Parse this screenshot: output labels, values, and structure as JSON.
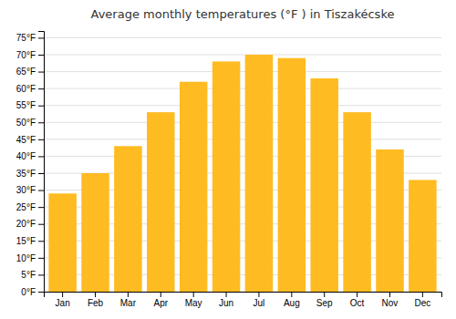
{
  "chart_data": {
    "type": "bar",
    "title": "Average monthly temperatures (°F ) in Tiszakécske",
    "categories": [
      "Jan",
      "Feb",
      "Mar",
      "Apr",
      "May",
      "Jun",
      "Jul",
      "Aug",
      "Sep",
      "Oct",
      "Nov",
      "Dec"
    ],
    "values": [
      29,
      35,
      43,
      53,
      62,
      68,
      70,
      69,
      63,
      53,
      42,
      33
    ],
    "color": "#FFBB22",
    "ylim": [
      0,
      77
    ],
    "yticks": [
      {
        "value": 0,
        "label": "0°F"
      },
      {
        "value": 5,
        "label": "5°F"
      },
      {
        "value": 10,
        "label": "10°F"
      },
      {
        "value": 15,
        "label": "15°F"
      },
      {
        "value": 20,
        "label": "20°F"
      },
      {
        "value": 25,
        "label": "25°F"
      },
      {
        "value": 30,
        "label": "30°F"
      },
      {
        "value": 35,
        "label": "35°F"
      },
      {
        "value": 40,
        "label": "40°F"
      },
      {
        "value": 45,
        "label": "45°F"
      },
      {
        "value": 50,
        "label": "50°F"
      },
      {
        "value": 55,
        "label": "55°F"
      },
      {
        "value": 60,
        "label": "60°F"
      },
      {
        "value": 65,
        "label": "65°F"
      },
      {
        "value": 70,
        "label": "70°F"
      },
      {
        "value": 75,
        "label": "75°F"
      }
    ],
    "grid": true
  }
}
